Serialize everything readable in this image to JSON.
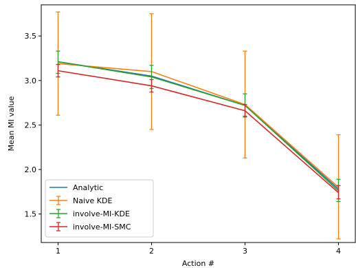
{
  "chart_data": {
    "type": "line",
    "title": "",
    "xlabel": "Action #",
    "ylabel": "Mean MI value",
    "x": [
      1,
      2,
      3,
      4
    ],
    "x_ticks": [
      "1",
      "2",
      "3",
      "4"
    ],
    "y_ticks": [
      "1.5",
      "2.0",
      "2.5",
      "3.0",
      "3.5"
    ],
    "xlim": [
      0.82,
      4.18
    ],
    "ylim": [
      1.18,
      3.85
    ],
    "grid": false,
    "legend_position": "lower-left",
    "series": [
      {
        "name": "Analytic",
        "color": "#1f77b4",
        "values": [
          3.21,
          3.05,
          2.72,
          1.78
        ],
        "error_bars": false
      },
      {
        "name": "Naive KDE",
        "color": "#ff7f0e",
        "values": [
          3.19,
          3.1,
          2.73,
          1.8
        ],
        "lower": [
          2.61,
          2.45,
          2.13,
          1.22
        ],
        "upper": [
          3.77,
          3.75,
          3.33,
          2.39
        ],
        "error_bars": true
      },
      {
        "name": "involve-MI-KDE",
        "color": "#2ca02c",
        "values": [
          3.21,
          3.04,
          2.72,
          1.76
        ],
        "lower": [
          3.08,
          2.91,
          2.6,
          1.64
        ],
        "upper": [
          3.33,
          3.17,
          2.85,
          1.89
        ],
        "error_bars": true
      },
      {
        "name": "involve-MI-SMC",
        "color": "#d62728",
        "values": [
          3.11,
          2.94,
          2.66,
          1.74
        ],
        "lower": [
          3.04,
          2.87,
          2.59,
          1.67
        ],
        "upper": [
          3.18,
          3.01,
          2.73,
          1.82
        ],
        "error_bars": true
      }
    ]
  }
}
